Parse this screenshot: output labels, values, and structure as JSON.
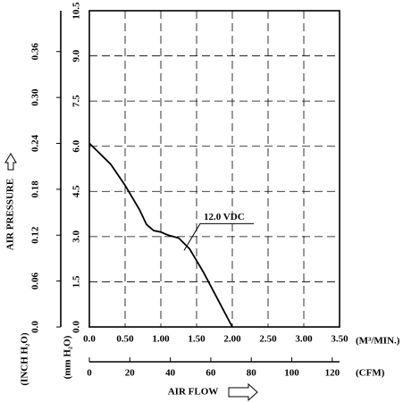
{
  "chart_data": {
    "type": "line",
    "y_label": "AIR PRESSURE",
    "y_unit": "(mm H₂O)",
    "y2_unit": "(INCH H₂O)",
    "x_label": "AIR FLOW",
    "x_unit": "(M³/MIN.)",
    "x2_unit": "(CFM)",
    "xlim": [
      0,
      3.5
    ],
    "xticks": [
      {
        "value": 0,
        "label": "0.0"
      },
      {
        "value": 0.5,
        "label": "0.50"
      },
      {
        "value": 1,
        "label": "1.00"
      },
      {
        "value": 1.5,
        "label": "1.50"
      },
      {
        "value": 2,
        "label": "2.00"
      },
      {
        "value": 2.5,
        "label": "2.50"
      },
      {
        "value": 3,
        "label": "3.00"
      },
      {
        "value": 3.5,
        "label": "3.50"
      }
    ],
    "x2lim": [
      0,
      123.6
    ],
    "x2ticks": [
      0,
      20,
      40,
      60,
      80,
      100,
      120
    ],
    "ylim": [
      0,
      10.5
    ],
    "yticks": [
      {
        "value": 0,
        "label": "0.0"
      },
      1.5,
      {
        "value": 3,
        "label": "3.0"
      },
      4.5,
      {
        "value": 6,
        "label": "6.0"
      },
      7.5,
      {
        "value": 9,
        "label": "9.0"
      },
      10.5
    ],
    "y2lim": [
      0,
      0.4134
    ],
    "y2ticks": [
      {
        "value": 0,
        "label": "0.0"
      },
      0.06,
      0.12,
      0.18,
      0.24,
      {
        "value": 0.3,
        "label": "0.30"
      },
      0.36
    ],
    "grid": true,
    "x": [
      0,
      0.3,
      0.5,
      0.7,
      0.8,
      0.9,
      1.0,
      1.1,
      1.25,
      1.4,
      1.6,
      1.8,
      2.0
    ],
    "series": [
      {
        "name": "12.0 VDC",
        "color": "#000000",
        "values": [
          6.1,
          5.4,
          4.7,
          3.9,
          3.4,
          3.2,
          3.15,
          3.05,
          2.95,
          2.6,
          1.8,
          0.9,
          0
        ]
      }
    ]
  }
}
